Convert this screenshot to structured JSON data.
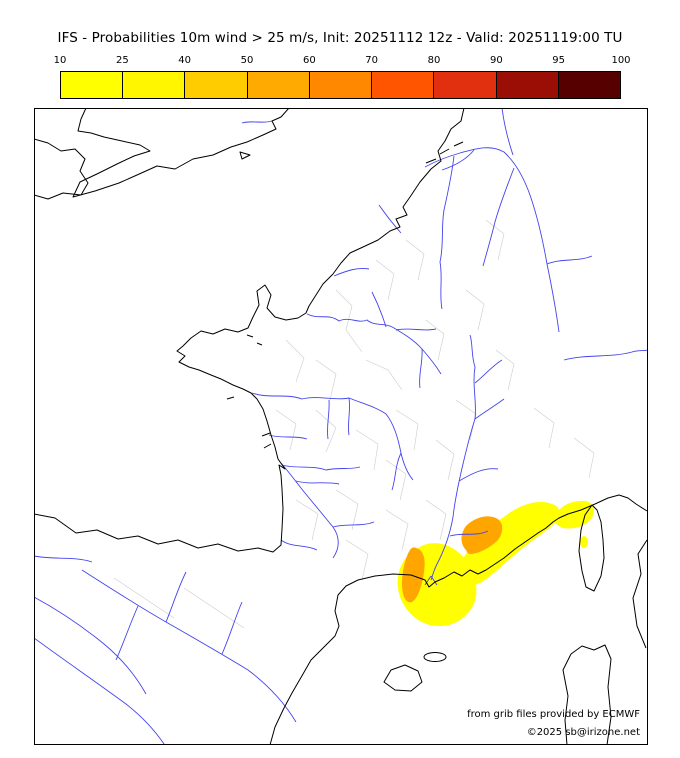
{
  "title": "IFS - Probabilities 10m wind > 25 m/s, Init: 20251112 12z - Valid: 20251119:00 TU",
  "colorbar": {
    "tick_labels": [
      "10",
      "25",
      "40",
      "50",
      "60",
      "70",
      "80",
      "90",
      "95",
      "100"
    ],
    "segment_colors": [
      "#ffff00",
      "#fff600",
      "#ffcc00",
      "#ffaa00",
      "#ff8800",
      "#ff5500",
      "#e03010",
      "#9b0e06",
      "#570000"
    ]
  },
  "map": {
    "coast_color": "#000000",
    "river_color": "#4444ee",
    "border_color": "#cccccc",
    "prob_low_color": "#ffff00",
    "prob_mid_color": "#ffa500",
    "attribution_line1": "from grib files provided by ECMWF",
    "attribution_line2": "©2025 sb@irizone.net"
  }
}
